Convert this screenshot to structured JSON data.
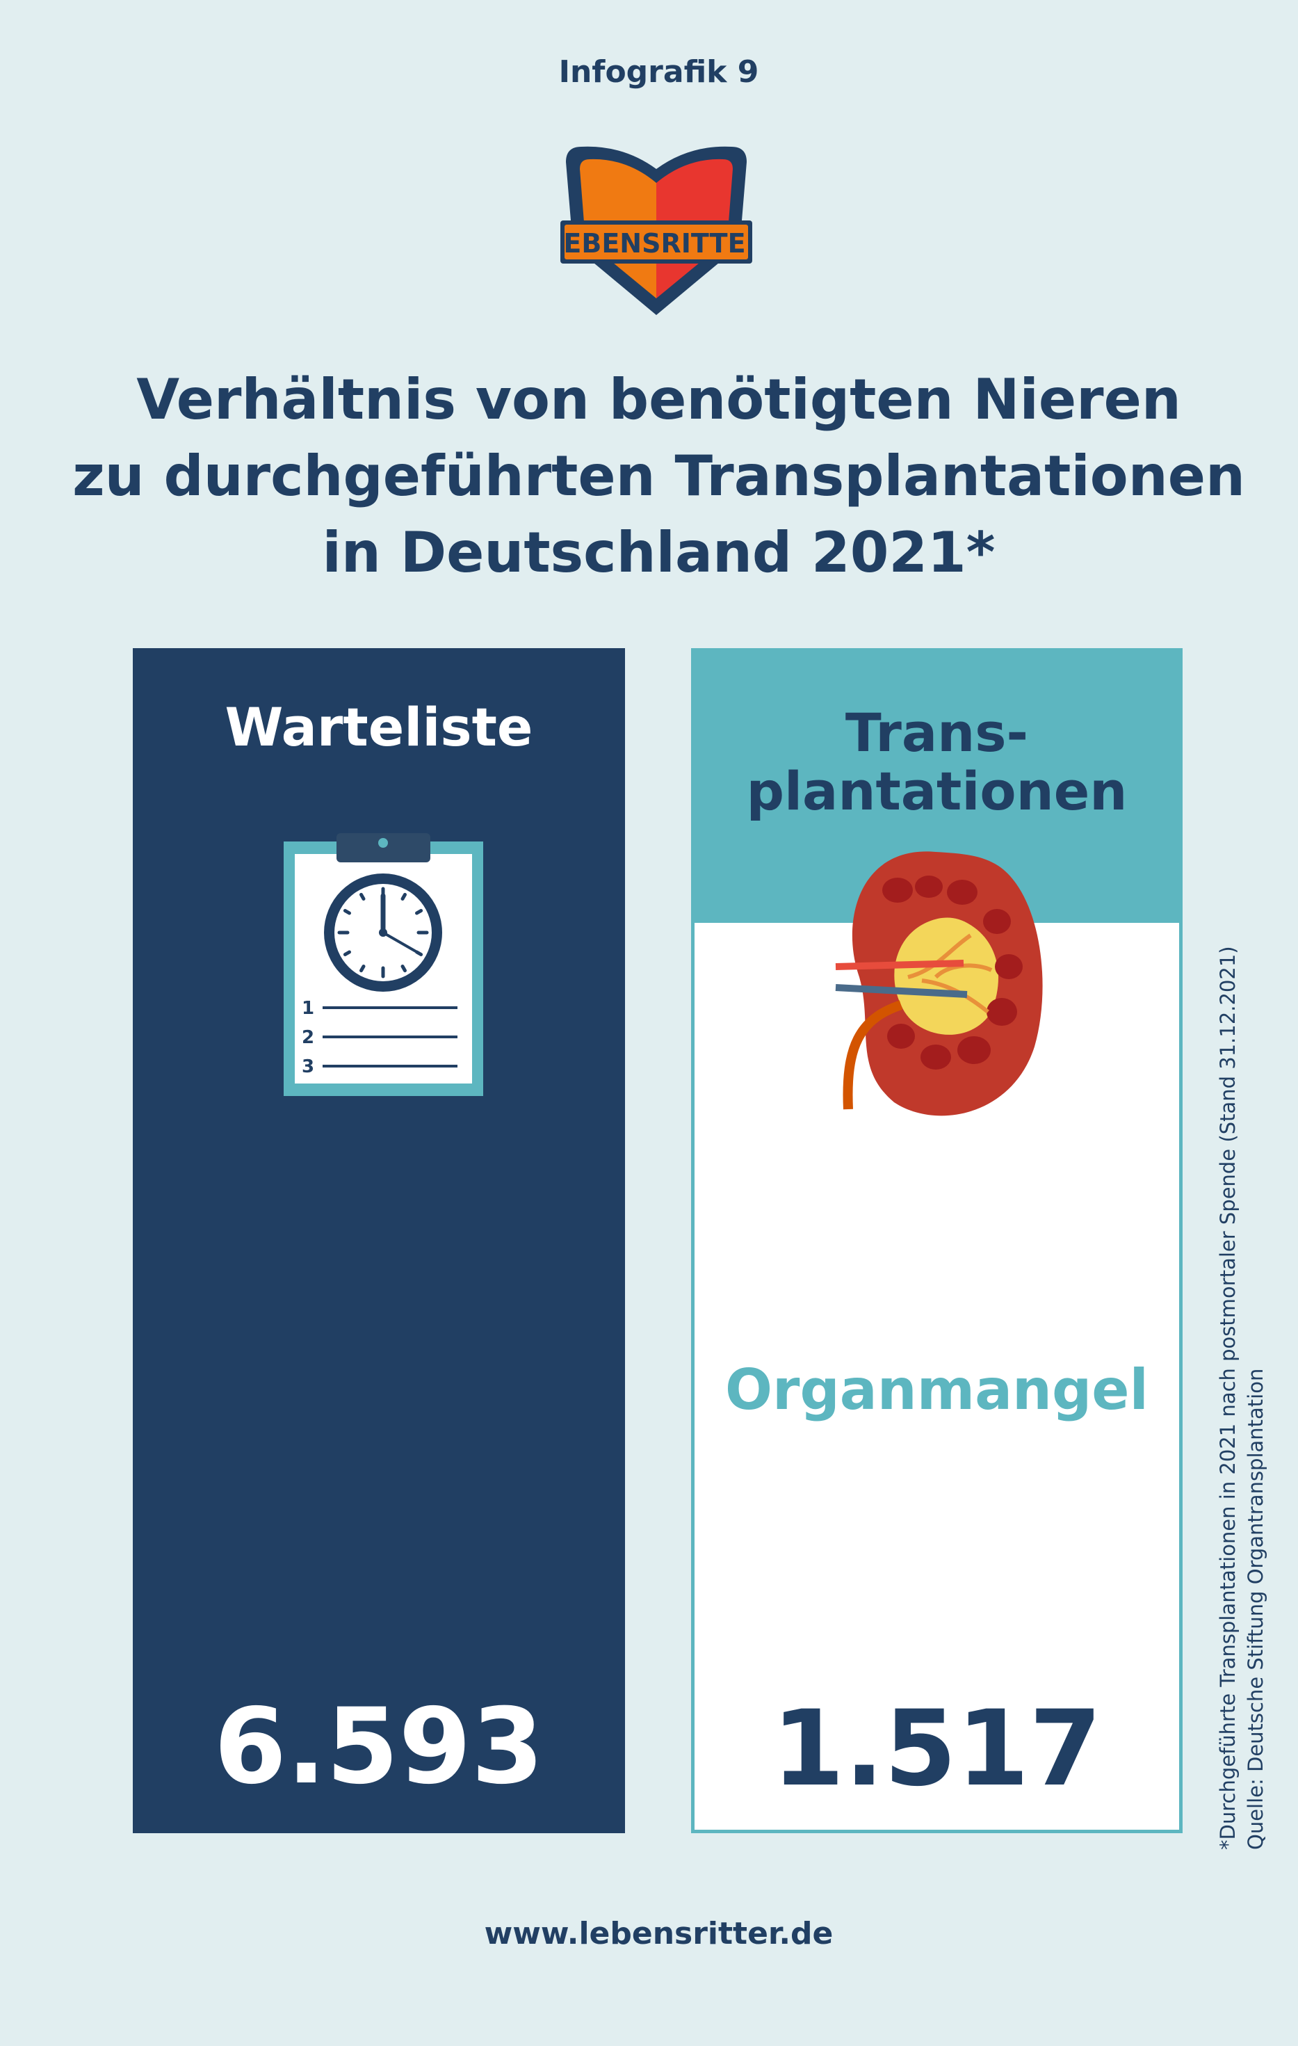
{
  "header": {
    "label": "Infografik 9",
    "logo_text": "LEBENSRITTER"
  },
  "title": {
    "line1": "Verhältnis von benötigten Nieren",
    "line2": "zu durchgeführten Transplantationen",
    "line3": "in Deutschland 2021*"
  },
  "chart_data": {
    "type": "bar",
    "title": "Verhältnis von benötigten Nieren zu durchgeführten Transplantationen in Deutschland 2021*",
    "categories": [
      "Warteliste",
      "Trans-plantationen"
    ],
    "values": [
      6593,
      1517
    ],
    "value_labels": [
      "6.593",
      "1.517"
    ],
    "annotation": "Organmangel",
    "legend": "none",
    "grid": false
  },
  "panels": {
    "left": {
      "label": "Warteliste",
      "value": "6.593",
      "icon": "clipboard-clock-icon"
    },
    "right": {
      "label_line1": "Trans-",
      "label_line2": "plantationen",
      "value": "1.517",
      "icon": "kidney-icon",
      "annotation": "Organmangel"
    }
  },
  "clipboard": {
    "items": [
      "1",
      "2",
      "3"
    ]
  },
  "footnote": {
    "line1": "*Durchgeführte Transplantationen in 2021 nach postmortaler Spende (Stand 31.12.2021)",
    "line2": "Quelle: Deutsche Stiftung Organtransplantation"
  },
  "footer": {
    "url": "www.lebensritter.de"
  },
  "colors": {
    "background": "#e1eef0",
    "navy": "#213f63",
    "teal": "#5db6c0",
    "logo_orange": "#f07a12",
    "logo_red": "#e8362f",
    "kidney_red": "#c0392b"
  }
}
